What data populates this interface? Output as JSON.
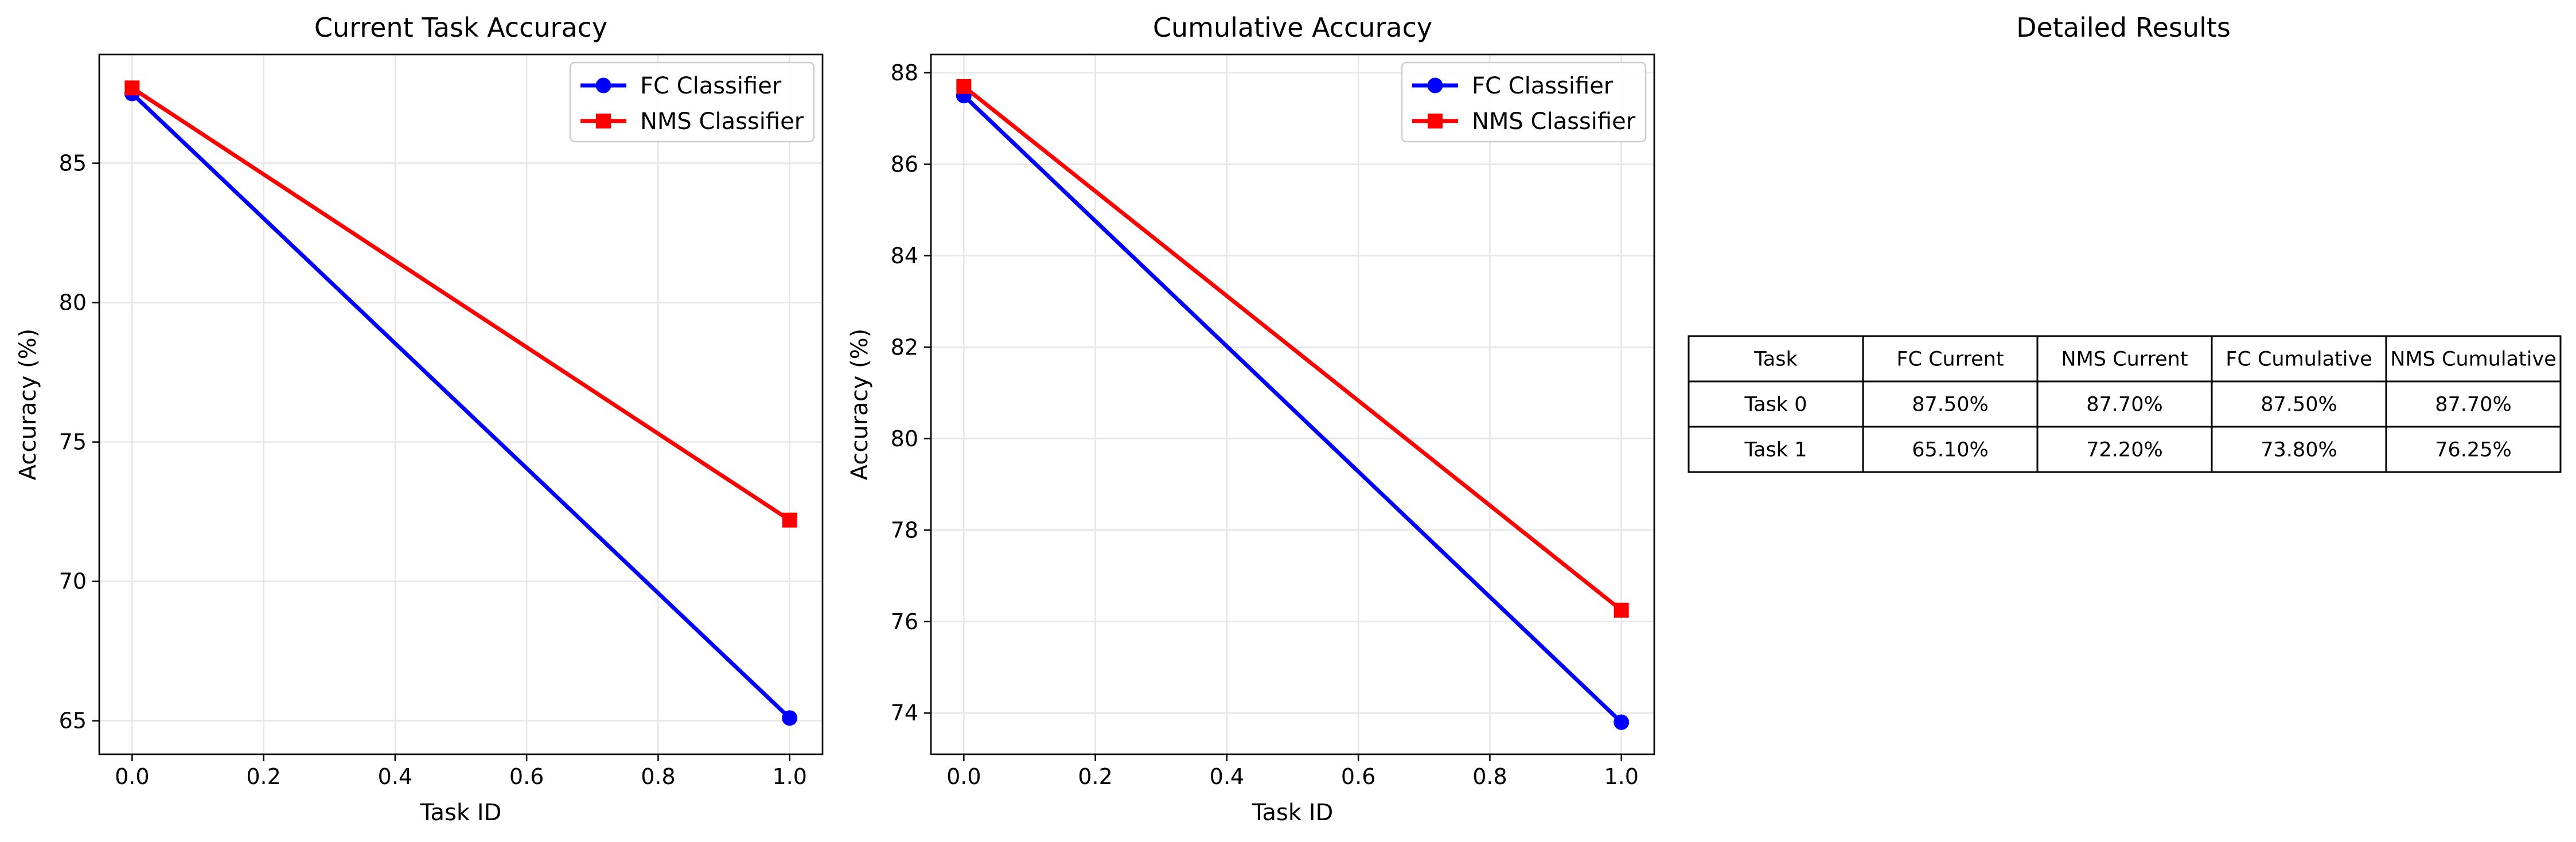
{
  "chart_data": [
    {
      "type": "line",
      "title": "Current Task Accuracy",
      "xlabel": "Task ID",
      "ylabel": "Accuracy (%)",
      "x": [
        0.0,
        1.0
      ],
      "xlim": [
        -0.05,
        1.05
      ],
      "ylim": [
        63.8,
        88.9
      ],
      "xticks": [
        "0.0",
        "0.2",
        "0.4",
        "0.6",
        "0.8",
        "1.0"
      ],
      "yticks": [
        "65",
        "70",
        "75",
        "80",
        "85"
      ],
      "grid": true,
      "legend_position": "top-right",
      "series": [
        {
          "name": "FC Classifier",
          "values": [
            87.5,
            65.1
          ],
          "color": "#0000ff",
          "marker": "circle"
        },
        {
          "name": "NMS Classifier",
          "values": [
            87.7,
            72.2
          ],
          "color": "#ff0000",
          "marker": "square"
        }
      ]
    },
    {
      "type": "line",
      "title": "Cumulative Accuracy",
      "xlabel": "Task ID",
      "ylabel": "Accuracy (%)",
      "x": [
        0.0,
        1.0
      ],
      "xlim": [
        -0.05,
        1.05
      ],
      "ylim": [
        73.1,
        88.4
      ],
      "xticks": [
        "0.0",
        "0.2",
        "0.4",
        "0.6",
        "0.8",
        "1.0"
      ],
      "yticks": [
        "74",
        "76",
        "78",
        "80",
        "82",
        "84",
        "86",
        "88"
      ],
      "grid": true,
      "legend_position": "top-right",
      "series": [
        {
          "name": "FC Classifier",
          "values": [
            87.5,
            73.8
          ],
          "color": "#0000ff",
          "marker": "circle"
        },
        {
          "name": "NMS Classifier",
          "values": [
            87.7,
            76.25
          ],
          "color": "#ff0000",
          "marker": "square"
        }
      ]
    },
    {
      "type": "table",
      "title": "Detailed Results",
      "columns": [
        "Task",
        "FC Current",
        "NMS Current",
        "FC Cumulative",
        "NMS Cumulative"
      ],
      "rows": [
        [
          "Task 0",
          "87.50%",
          "87.70%",
          "87.50%",
          "87.70%"
        ],
        [
          "Task 1",
          "65.10%",
          "72.20%",
          "73.80%",
          "76.25%"
        ]
      ]
    }
  ]
}
